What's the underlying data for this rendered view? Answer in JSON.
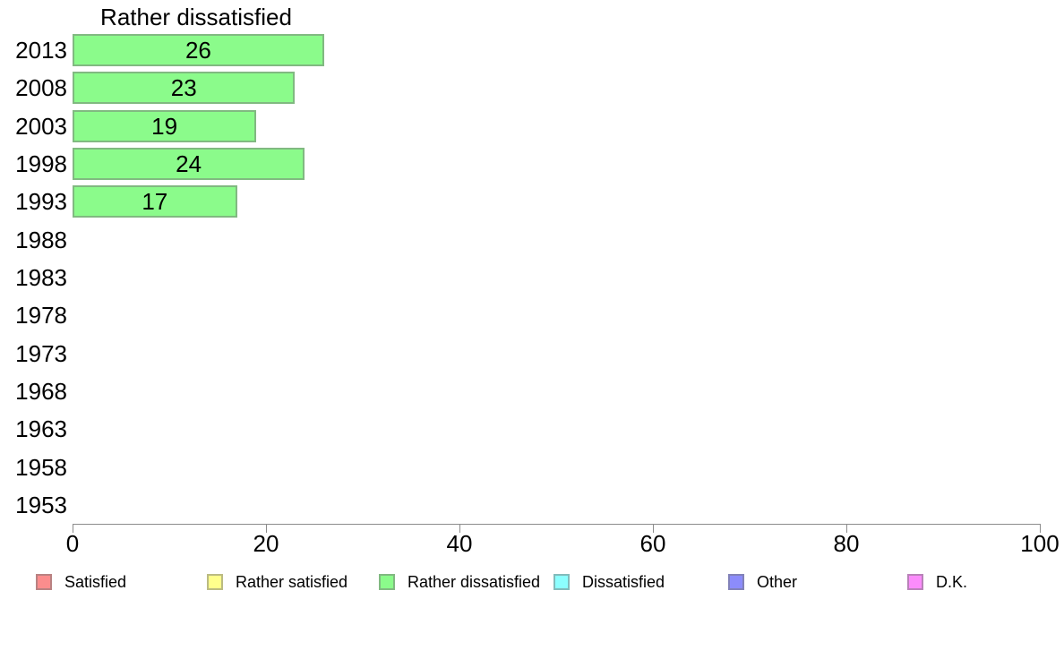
{
  "chart_data": {
    "type": "bar",
    "orientation": "horizontal",
    "title": "Rather dissatisfied",
    "categories": [
      "2013",
      "2008",
      "2003",
      "1998",
      "1993",
      "1988",
      "1983",
      "1978",
      "1973",
      "1968",
      "1963",
      "1958",
      "1953"
    ],
    "series": [
      {
        "name": "Rather dissatisfied",
        "color": "#8BFB8B",
        "values": [
          26,
          23,
          19,
          24,
          17,
          null,
          null,
          null,
          null,
          null,
          null,
          null,
          null
        ]
      }
    ],
    "bar_value_labels": true,
    "xlabel": "",
    "ylabel": "",
    "xlim": [
      0,
      100
    ],
    "xticks": [
      0,
      20,
      40,
      60,
      80,
      100
    ],
    "grid": false,
    "axis_color": "#8C8C8C",
    "text_color": "#000000",
    "legend": {
      "position": "bottom",
      "items": [
        {
          "label": "Satisfied",
          "color": "#FB8D8D"
        },
        {
          "label": "Rather satisfied",
          "color": "#FFFF8C"
        },
        {
          "label": "Rather dissatisfied",
          "color": "#8BFB8B"
        },
        {
          "label": "Dissatisfied",
          "color": "#8CFFFF"
        },
        {
          "label": "Other",
          "color": "#8C8CFB"
        },
        {
          "label": "D.K.",
          "color": "#FB8CFB"
        }
      ]
    }
  }
}
